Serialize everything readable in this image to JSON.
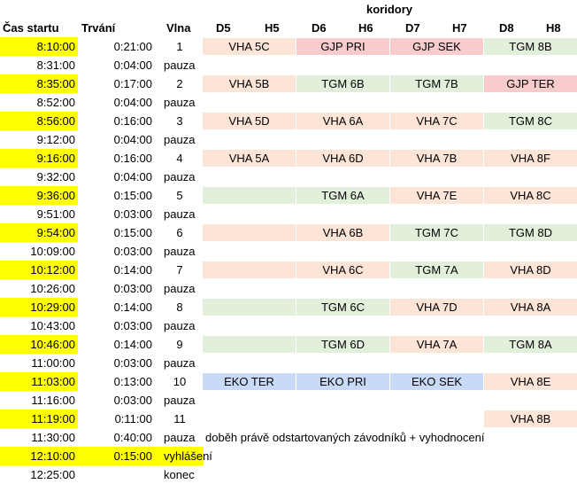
{
  "header": {
    "group_label": "koridory",
    "col_time": "Čas startu",
    "col_duration": "Trvání",
    "col_wave": "Vlna",
    "corridors": [
      "D5",
      "H5",
      "D6",
      "H6",
      "D7",
      "H7",
      "D8",
      "H8"
    ]
  },
  "colors": {
    "highlight": "#ffff00",
    "VHA": "#fce4d6",
    "TGM": "#e2efda",
    "GJP": "#f8cbcc",
    "EKO": "#c9daf8"
  },
  "rows": [
    {
      "time": "8:10:00",
      "duration": "0:21:00",
      "wave": "1",
      "hl": true,
      "cells": [
        {
          "text": "VHA 5C",
          "kind": "VHA"
        },
        {
          "text": "GJP PRI",
          "kind": "GJP"
        },
        {
          "text": "GJP SEK",
          "kind": "GJP"
        },
        {
          "text": "TGM 8B",
          "kind": "TGM"
        }
      ]
    },
    {
      "time": "8:31:00",
      "duration": "0:04:00",
      "wave": "pauza",
      "hl": false,
      "cells": []
    },
    {
      "time": "8:35:00",
      "duration": "0:17:00",
      "wave": "2",
      "hl": true,
      "cells": [
        {
          "text": "VHA 5B",
          "kind": "VHA"
        },
        {
          "text": "TGM 6B",
          "kind": "TGM"
        },
        {
          "text": "TGM 7B",
          "kind": "TGM"
        },
        {
          "text": "GJP TER",
          "kind": "GJP"
        }
      ]
    },
    {
      "time": "8:52:00",
      "duration": "0:04:00",
      "wave": "pauza",
      "hl": false,
      "cells": []
    },
    {
      "time": "8:56:00",
      "duration": "0:16:00",
      "wave": "3",
      "hl": true,
      "cells": [
        {
          "text": "VHA 5D",
          "kind": "VHA"
        },
        {
          "text": "VHA 6A",
          "kind": "VHA"
        },
        {
          "text": "VHA 7C",
          "kind": "VHA"
        },
        {
          "text": "TGM 8C",
          "kind": "TGM"
        }
      ]
    },
    {
      "time": "9:12:00",
      "duration": "0:04:00",
      "wave": "pauza",
      "hl": false,
      "cells": []
    },
    {
      "time": "9:16:00",
      "duration": "0:16:00",
      "wave": "4",
      "hl": true,
      "cells": [
        {
          "text": "VHA 5A",
          "kind": "VHA"
        },
        {
          "text": "VHA 6D",
          "kind": "VHA"
        },
        {
          "text": "VHA 7B",
          "kind": "VHA"
        },
        {
          "text": "VHA 8F",
          "kind": "VHA"
        }
      ]
    },
    {
      "time": "9:32:00",
      "duration": "0:04:00",
      "wave": "pauza",
      "hl": false,
      "cells": []
    },
    {
      "time": "9:36:00",
      "duration": "0:15:00",
      "wave": "5",
      "hl": true,
      "cells": [
        {
          "text": "",
          "kind": "TGM"
        },
        {
          "text": "TGM 6A",
          "kind": "TGM"
        },
        {
          "text": "VHA 7E",
          "kind": "VHA"
        },
        {
          "text": "VHA 8C",
          "kind": "VHA"
        }
      ]
    },
    {
      "time": "9:51:00",
      "duration": "0:03:00",
      "wave": "pauza",
      "hl": false,
      "cells": []
    },
    {
      "time": "9:54:00",
      "duration": "0:15:00",
      "wave": "6",
      "hl": true,
      "cells": [
        {
          "text": "",
          "kind": "VHA"
        },
        {
          "text": "VHA 6B",
          "kind": "VHA"
        },
        {
          "text": "TGM 7C",
          "kind": "TGM"
        },
        {
          "text": "TGM 8D",
          "kind": "TGM"
        }
      ]
    },
    {
      "time": "10:09:00",
      "duration": "0:03:00",
      "wave": "pauza",
      "hl": false,
      "cells": []
    },
    {
      "time": "10:12:00",
      "duration": "0:14:00",
      "wave": "7",
      "hl": true,
      "cells": [
        {
          "text": "",
          "kind": "VHA"
        },
        {
          "text": "VHA 6C",
          "kind": "VHA"
        },
        {
          "text": "TGM 7A",
          "kind": "TGM"
        },
        {
          "text": "VHA 8D",
          "kind": "VHA"
        }
      ]
    },
    {
      "time": "10:26:00",
      "duration": "0:03:00",
      "wave": "pauza",
      "hl": false,
      "cells": []
    },
    {
      "time": "10:29:00",
      "duration": "0:14:00",
      "wave": "8",
      "hl": true,
      "cells": [
        {
          "text": "",
          "kind": "TGM"
        },
        {
          "text": "TGM 6C",
          "kind": "TGM"
        },
        {
          "text": "VHA 7D",
          "kind": "VHA"
        },
        {
          "text": "VHA 8A",
          "kind": "VHA"
        }
      ]
    },
    {
      "time": "10:43:00",
      "duration": "0:03:00",
      "wave": "pauza",
      "hl": false,
      "cells": []
    },
    {
      "time": "10:46:00",
      "duration": "0:14:00",
      "wave": "9",
      "hl": true,
      "cells": [
        {
          "text": "",
          "kind": "TGM"
        },
        {
          "text": "TGM 6D",
          "kind": "TGM"
        },
        {
          "text": "VHA 7A",
          "kind": "VHA"
        },
        {
          "text": "TGM 8A",
          "kind": "TGM"
        }
      ]
    },
    {
      "time": "11:00:00",
      "duration": "0:03:00",
      "wave": "pauza",
      "hl": false,
      "cells": []
    },
    {
      "time": "11:03:00",
      "duration": "0:13:00",
      "wave": "10",
      "hl": true,
      "cells": [
        {
          "text": "EKO TER",
          "kind": "EKO"
        },
        {
          "text": "EKO PRI",
          "kind": "EKO"
        },
        {
          "text": "EKO SEK",
          "kind": "EKO"
        },
        {
          "text": "VHA 8E",
          "kind": "VHA"
        }
      ]
    },
    {
      "time": "11:16:00",
      "duration": "0:03:00",
      "wave": "pauza",
      "hl": false,
      "cells": []
    },
    {
      "time": "11:19:00",
      "duration": "0:11:00",
      "wave": "11",
      "hl": true,
      "cells": [
        null,
        null,
        null,
        {
          "text": "VHA 8B",
          "kind": "VHA"
        }
      ]
    },
    {
      "time": "11:30:00",
      "duration": "0:40:00",
      "wave": "pauza",
      "hl": false,
      "cells": [],
      "note": "doběh právě odstartovaných závodníků + vyhodnocení"
    },
    {
      "time": "12:10:00",
      "duration": "0:15:00",
      "wave": "vyhlášení",
      "hl": true,
      "hl_all": true,
      "cells": []
    },
    {
      "time": "12:25:00",
      "duration": "",
      "wave": "konec",
      "hl": false,
      "cells": []
    }
  ]
}
